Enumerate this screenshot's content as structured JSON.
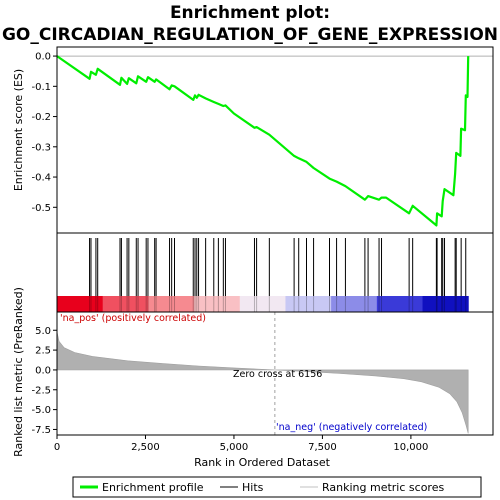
{
  "chart_data": {
    "type": "line",
    "title_line1": "Enrichment plot:",
    "title_line2": "GO_CIRCADIAN_REGULATION_OF_GENE_EXPRESSION",
    "es_panel": {
      "ylabel": "Enrichment score (ES)",
      "ylim": [
        -0.585,
        0.03
      ],
      "yticks": [
        {
          "value": 0.0,
          "label": "0.0"
        },
        {
          "value": -0.1,
          "label": "-0.1"
        },
        {
          "value": -0.2,
          "label": "-0.2"
        },
        {
          "value": -0.3,
          "label": "-0.3"
        },
        {
          "value": -0.4,
          "label": "-0.4"
        },
        {
          "value": -0.5,
          "label": "-0.5"
        }
      ],
      "series_color": "#00ee00",
      "points": [
        [
          0,
          0.0
        ],
        [
          920,
          -0.075
        ],
        [
          960,
          -0.052
        ],
        [
          1100,
          -0.062
        ],
        [
          1150,
          -0.042
        ],
        [
          1780,
          -0.095
        ],
        [
          1820,
          -0.072
        ],
        [
          1980,
          -0.092
        ],
        [
          2030,
          -0.073
        ],
        [
          2240,
          -0.09
        ],
        [
          2290,
          -0.067
        ],
        [
          2520,
          -0.085
        ],
        [
          2570,
          -0.07
        ],
        [
          2760,
          -0.085
        ],
        [
          2800,
          -0.077
        ],
        [
          3180,
          -0.11
        ],
        [
          3240,
          -0.097
        ],
        [
          3320,
          -0.1
        ],
        [
          3850,
          -0.145
        ],
        [
          3900,
          -0.13
        ],
        [
          3950,
          -0.138
        ],
        [
          4000,
          -0.128
        ],
        [
          4200,
          -0.14
        ],
        [
          4430,
          -0.152
        ],
        [
          4560,
          -0.158
        ],
        [
          4700,
          -0.165
        ],
        [
          4760,
          -0.163
        ],
        [
          5000,
          -0.19
        ],
        [
          5580,
          -0.237
        ],
        [
          5640,
          -0.235
        ],
        [
          6000,
          -0.26
        ],
        [
          6700,
          -0.33
        ],
        [
          6830,
          -0.338
        ],
        [
          7050,
          -0.35
        ],
        [
          7250,
          -0.37
        ],
        [
          7700,
          -0.405
        ],
        [
          7900,
          -0.415
        ],
        [
          8150,
          -0.43
        ],
        [
          8700,
          -0.475
        ],
        [
          8790,
          -0.463
        ],
        [
          9100,
          -0.475
        ],
        [
          9170,
          -0.468
        ],
        [
          9300,
          -0.468
        ],
        [
          9950,
          -0.52
        ],
        [
          10050,
          -0.495
        ],
        [
          10720,
          -0.56
        ],
        [
          10740,
          -0.52
        ],
        [
          10870,
          -0.53
        ],
        [
          10900,
          -0.48
        ],
        [
          10950,
          -0.44
        ],
        [
          11200,
          -0.46
        ],
        [
          11250,
          -0.39
        ],
        [
          11280,
          -0.32
        ],
        [
          11400,
          -0.33
        ],
        [
          11420,
          -0.24
        ],
        [
          11530,
          -0.245
        ],
        [
          11550,
          -0.13
        ],
        [
          11600,
          -0.135
        ],
        [
          11620,
          0.0
        ]
      ]
    },
    "hits": [
      920,
      960,
      1100,
      1150,
      1780,
      1820,
      1980,
      2030,
      2240,
      2290,
      2520,
      2570,
      2760,
      2800,
      3180,
      3240,
      3320,
      3850,
      3900,
      3950,
      4000,
      4200,
      4430,
      4560,
      4700,
      4760,
      5580,
      5640,
      6000,
      6700,
      6830,
      7050,
      7250,
      7700,
      7900,
      8150,
      8700,
      8790,
      9100,
      9170,
      9950,
      10050,
      10720,
      10740,
      10870,
      10900,
      10950,
      11250,
      11280,
      11420,
      11550
    ],
    "heatmap_colors": [
      "#e8001c",
      "#f05060",
      "#f68a90",
      "#f9c0c4",
      "#f2e8f2",
      "#c8c8f4",
      "#8c8ce8",
      "#3a3ad8",
      "#1010c0"
    ],
    "rank_panel": {
      "ylabel": "Ranked list metric (PreRanked)",
      "xlabel": "Rank in Ordered Dataset",
      "ylim": [
        -8.2,
        7.3
      ],
      "yticks": [
        {
          "value": 5.0,
          "label": "5.0"
        },
        {
          "value": 2.5,
          "label": "2.5"
        },
        {
          "value": 0.0,
          "label": "0.0"
        },
        {
          "value": -2.5,
          "label": "-2.5"
        },
        {
          "value": -5.0,
          "label": "-5.0"
        },
        {
          "value": -7.5,
          "label": "-7.5"
        }
      ],
      "fill_color": "#b0b0b0",
      "curve": [
        [
          0,
          4.8
        ],
        [
          60,
          3.6
        ],
        [
          200,
          2.8
        ],
        [
          500,
          2.2
        ],
        [
          1000,
          1.7
        ],
        [
          2000,
          1.15
        ],
        [
          3000,
          0.8
        ],
        [
          4000,
          0.5
        ],
        [
          5000,
          0.25
        ],
        [
          6156,
          0.0
        ],
        [
          7000,
          -0.2
        ],
        [
          8000,
          -0.45
        ],
        [
          9000,
          -0.75
        ],
        [
          9800,
          -1.1
        ],
        [
          10300,
          -1.5
        ],
        [
          10800,
          -2.2
        ],
        [
          11100,
          -3.0
        ],
        [
          11300,
          -4.0
        ],
        [
          11450,
          -5.4
        ],
        [
          11560,
          -7.0
        ],
        [
          11620,
          -8.0
        ]
      ],
      "zero_cross_rank": 6156,
      "zero_cross_label": "Zero cross at 6156",
      "pos_label": "'na_pos' (positively correlated)",
      "neg_label": "'na_neg' (negatively correlated)"
    },
    "xlim": [
      0,
      12320
    ],
    "xticks": [
      {
        "value": 0,
        "label": "0"
      },
      {
        "value": 2500,
        "label": "2,500"
      },
      {
        "value": 5000,
        "label": "5,000"
      },
      {
        "value": 7500,
        "label": "7,500"
      },
      {
        "value": 10000,
        "label": "10,000"
      }
    ],
    "legend": [
      {
        "label": "Enrichment profile",
        "color": "#00ee00",
        "kind": "thick"
      },
      {
        "label": "Hits",
        "color": "#000000",
        "kind": "thin"
      },
      {
        "label": "Ranking metric scores",
        "color": "#c0c0c0",
        "kind": "thin"
      }
    ]
  }
}
